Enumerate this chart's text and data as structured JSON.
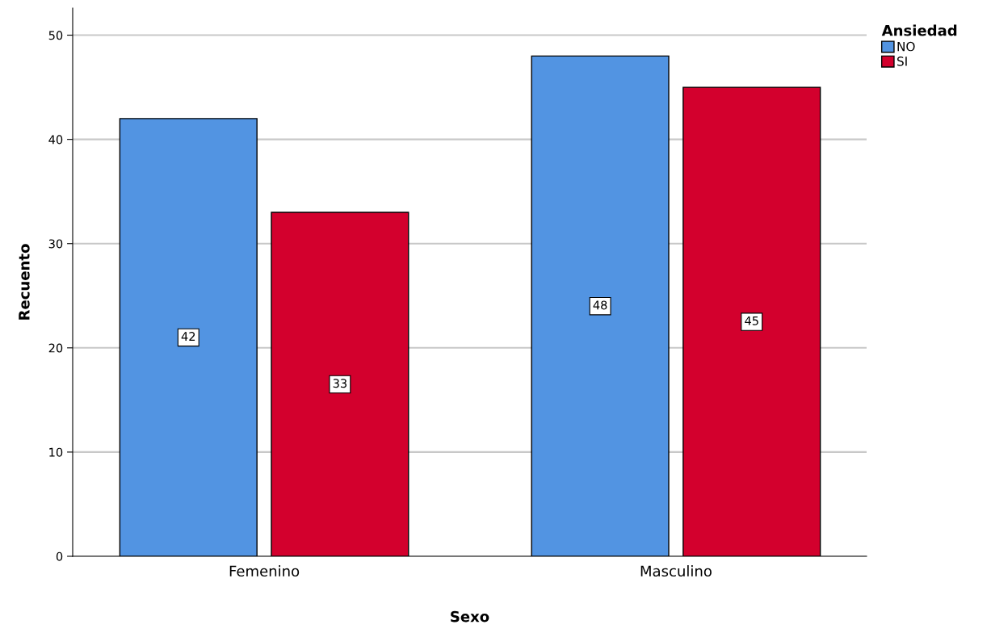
{
  "chart_data": {
    "type": "bar",
    "xlabel": "Sexo",
    "ylabel": "Recuento",
    "legend_title": "Ansiedad",
    "categories": [
      "Femenino",
      "Masculino"
    ],
    "series": [
      {
        "name": "NO",
        "color": "#5294e2",
        "values": [
          42,
          48
        ]
      },
      {
        "name": "SI",
        "color": "#d3002d",
        "values": [
          33,
          45
        ]
      }
    ],
    "ylim": [
      0,
      52.6
    ],
    "yticks": [
      0,
      10,
      20,
      30,
      40,
      50
    ],
    "grid": "y",
    "legend": "top right",
    "data_labels": true
  }
}
